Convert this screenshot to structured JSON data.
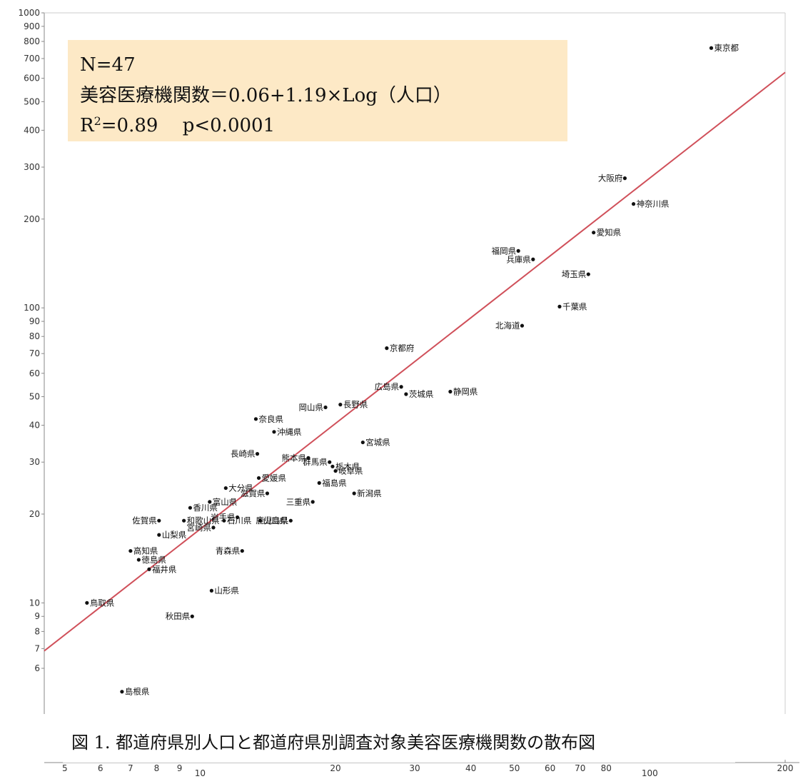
{
  "chart_data": {
    "type": "scatter",
    "title": "",
    "xlabel": "",
    "ylabel": "",
    "x_scale": "log",
    "y_scale": "log",
    "xlim": [
      4.5,
      200
    ],
    "ylim": [
      4.2,
      1000
    ],
    "x_tick_labels": [
      "5",
      "6",
      "7",
      "8",
      "9",
      "10",
      "20",
      "30",
      "40",
      "50",
      "60",
      "70",
      "80",
      "100",
      "200"
    ],
    "y_tick_labels": [
      "6",
      "7",
      "8",
      "9",
      "10",
      "20",
      "30",
      "40",
      "50",
      "60",
      "70",
      "80",
      "90",
      "100",
      "200",
      "300",
      "400",
      "500",
      "600",
      "700",
      "800",
      "900",
      "1000"
    ],
    "grid": false,
    "point_color": "#111111",
    "fit_line_color": "#d0505a",
    "fit_line": {
      "intercept": 0.06,
      "slope": 1.19
    },
    "annotation": {
      "background": "#fde9c6",
      "line1": "N=47",
      "line2": "美容医療機関数＝0.06+1.19×Log（人口）",
      "line3_prefix": "R",
      "line3_sup": "2",
      "line3_suffix": "=0.89　 p<0.0001"
    },
    "points": [
      {
        "label": "東京都",
        "x": 137,
        "y": 760
      },
      {
        "label": "大阪府",
        "x": 88,
        "y": 275
      },
      {
        "label": "神奈川県",
        "x": 92,
        "y": 225
      },
      {
        "label": "愛知県",
        "x": 75,
        "y": 180
      },
      {
        "label": "福岡県",
        "x": 51,
        "y": 156
      },
      {
        "label": "兵庫県",
        "x": 55,
        "y": 146
      },
      {
        "label": "埼玉県",
        "x": 73,
        "y": 130
      },
      {
        "label": "千葉県",
        "x": 63,
        "y": 101
      },
      {
        "label": "北海道",
        "x": 52,
        "y": 87
      },
      {
        "label": "京都府",
        "x": 26,
        "y": 73
      },
      {
        "label": "広島県",
        "x": 28,
        "y": 54
      },
      {
        "label": "静岡県",
        "x": 36,
        "y": 52
      },
      {
        "label": "茨城県",
        "x": 28.7,
        "y": 51
      },
      {
        "label": "長野県",
        "x": 20.5,
        "y": 47
      },
      {
        "label": "岡山県",
        "x": 19,
        "y": 46
      },
      {
        "label": "奈良県",
        "x": 13.3,
        "y": 42
      },
      {
        "label": "沖縄県",
        "x": 14.6,
        "y": 38
      },
      {
        "label": "宮城県",
        "x": 23,
        "y": 35
      },
      {
        "label": "長崎県",
        "x": 13.4,
        "y": 32
      },
      {
        "label": "熊本県",
        "x": 17.4,
        "y": 31
      },
      {
        "label": "群馬県",
        "x": 19.4,
        "y": 30
      },
      {
        "label": "栃木県",
        "x": 19.7,
        "y": 29
      },
      {
        "label": "岐阜県",
        "x": 20,
        "y": 28
      },
      {
        "label": "愛媛県",
        "x": 13.5,
        "y": 26.5
      },
      {
        "label": "福島県",
        "x": 18.4,
        "y": 25.5
      },
      {
        "label": "大分県",
        "x": 11.4,
        "y": 24.5
      },
      {
        "label": "滋賀県",
        "x": 14.1,
        "y": 23.5
      },
      {
        "label": "新潟県",
        "x": 22,
        "y": 23.5
      },
      {
        "label": "富山県",
        "x": 10.5,
        "y": 22
      },
      {
        "label": "三重県",
        "x": 17.8,
        "y": 22
      },
      {
        "label": "香川県",
        "x": 9.5,
        "y": 21
      },
      {
        "label": "岩手県",
        "x": 12.1,
        "y": 19.5
      },
      {
        "label": "佐賀県",
        "x": 8.1,
        "y": 19
      },
      {
        "label": "和歌山県",
        "x": 9.2,
        "y": 19
      },
      {
        "label": "石川県",
        "x": 11.3,
        "y": 19
      },
      {
        "label": "山口県",
        "x": 13.6,
        "y": 19
      },
      {
        "label": "鹿児島県",
        "x": 15.9,
        "y": 19
      },
      {
        "label": "宮崎県",
        "x": 10.7,
        "y": 18
      },
      {
        "label": "山梨県",
        "x": 8.1,
        "y": 17
      },
      {
        "label": "青森県",
        "x": 12.4,
        "y": 15
      },
      {
        "label": "高知県",
        "x": 7.0,
        "y": 15
      },
      {
        "label": "徳島県",
        "x": 7.3,
        "y": 14
      },
      {
        "label": "福井県",
        "x": 7.7,
        "y": 13
      },
      {
        "label": "山形県",
        "x": 10.6,
        "y": 11
      },
      {
        "label": "鳥取県",
        "x": 5.6,
        "y": 10
      },
      {
        "label": "秋田県",
        "x": 9.6,
        "y": 9
      },
      {
        "label": "島根県",
        "x": 6.7,
        "y": 5
      }
    ],
    "caption": "図 1.  都道府県別人口と都道府県別調査対象美容医療機関数の散布図"
  }
}
